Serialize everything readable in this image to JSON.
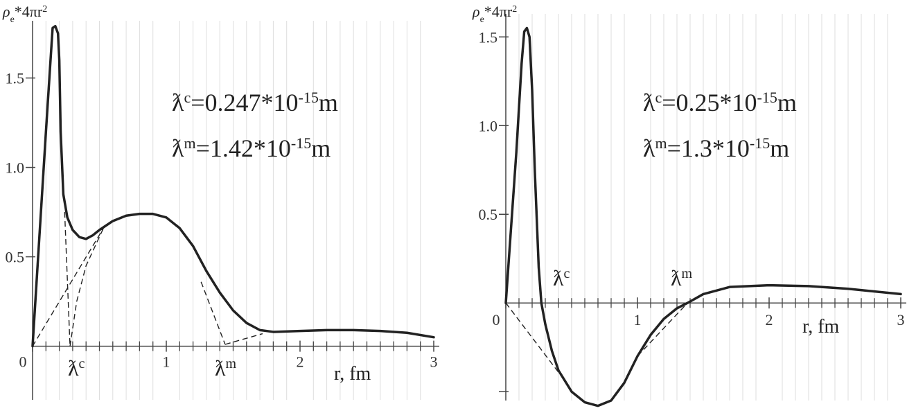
{
  "chart_data": [
    {
      "type": "line",
      "ylabel": [
        {
          "text": "ρ",
          "style": "italic"
        },
        {
          "text": "e",
          "style": "sub"
        },
        {
          "text": "*4πr"
        },
        {
          "text": "2",
          "style": "sup"
        }
      ],
      "xlabel": "r, fm",
      "xlim": [
        0,
        3
      ],
      "ylim": [
        -0.3,
        1.82
      ],
      "xticks": [
        0,
        1,
        2,
        3
      ],
      "yticks": [
        0.5,
        {
          "value": 1,
          "label": "1.0"
        },
        1.5
      ],
      "xminor": [
        0.1,
        0.2,
        0.3,
        0.4,
        0.5,
        0.6,
        0.7,
        0.8,
        0.9,
        1.1,
        1.2,
        1.3,
        1.4,
        1.5,
        1.6,
        1.7,
        1.8,
        1.9,
        2.1,
        2.2,
        2.3,
        2.4,
        2.5,
        2.6,
        2.7,
        2.8,
        2.9
      ],
      "grid": true,
      "series": [
        {
          "color": "#222",
          "x": [
            0,
            0.1,
            0.13,
            0.15,
            0.17,
            0.19,
            0.2,
            0.21,
            0.23,
            0.26,
            0.3,
            0.35,
            0.4,
            0.45,
            0.5,
            0.6,
            0.7,
            0.8,
            0.9,
            1.0,
            1.1,
            1.2,
            1.3,
            1.4,
            1.5,
            1.6,
            1.7,
            1.8,
            2.0,
            2.2,
            2.4,
            2.6,
            2.8,
            3.0
          ],
          "values": [
            0,
            1.2,
            1.55,
            1.78,
            1.79,
            1.75,
            1.6,
            1.2,
            0.85,
            0.72,
            0.65,
            0.61,
            0.6,
            0.62,
            0.65,
            0.7,
            0.73,
            0.74,
            0.74,
            0.72,
            0.66,
            0.56,
            0.42,
            0.3,
            0.2,
            0.13,
            0.09,
            0.08,
            0.085,
            0.09,
            0.09,
            0.085,
            0.075,
            0.05
          ]
        }
      ],
      "guides": [
        {
          "x": [
            0,
            0.53
          ],
          "values": [
            0,
            0.66
          ]
        },
        {
          "x": [
            0.24,
            0.28
          ],
          "values": [
            0.75,
            0
          ]
        },
        {
          "x": [
            0.28,
            0.33,
            0.4,
            0.53
          ],
          "values": [
            0,
            0.25,
            0.45,
            0.66
          ]
        },
        {
          "x": [
            1.26,
            1.44
          ],
          "values": [
            0.36,
            0.01
          ]
        },
        {
          "x": [
            1.44,
            1.72
          ],
          "values": [
            0.01,
            0.07
          ]
        }
      ],
      "annotations": [
        [
          {
            "text": "ƛ"
          },
          {
            "text": "c",
            "style": "sup"
          },
          {
            "text": "=0.247*10"
          },
          {
            "text": "-15",
            "style": "sup"
          },
          {
            "text": "m"
          }
        ],
        [
          {
            "text": "ƛ"
          },
          {
            "text": "m",
            "style": "sup"
          },
          {
            "text": "=1.42*10"
          },
          {
            "text": "-15",
            "style": "sup"
          },
          {
            "text": "m"
          }
        ],
        [
          {
            "text": "ƛ"
          },
          {
            "text": "c",
            "style": "sup"
          }
        ],
        [
          {
            "text": "ƛ"
          },
          {
            "text": "m",
            "style": "sup"
          }
        ]
      ]
    },
    {
      "type": "line",
      "ylabel": [
        {
          "text": "ρ",
          "style": "italic"
        },
        {
          "text": "e",
          "style": "sub"
        },
        {
          "text": "*4πr"
        },
        {
          "text": "2",
          "style": "sup"
        }
      ],
      "xlabel": "r, fm",
      "xlim": [
        0,
        3
      ],
      "ylim": [
        -0.55,
        1.63
      ],
      "xticks": [
        0,
        1,
        2,
        3
      ],
      "yticks": [
        {
          "value": -0.5,
          "label": null
        },
        0.5,
        {
          "value": 1,
          "label": "1.0"
        },
        1.5
      ],
      "xminor": [
        0.1,
        0.2,
        0.3,
        0.4,
        0.5,
        0.6,
        0.7,
        0.8,
        0.9,
        1.1,
        1.2,
        1.3,
        1.4,
        1.5,
        1.6,
        1.7,
        1.8,
        1.9,
        2.1,
        2.2,
        2.3,
        2.4,
        2.5,
        2.6,
        2.7,
        2.8,
        2.9
      ],
      "grid": true,
      "series": [
        {
          "color": "#222",
          "x": [
            0,
            0.08,
            0.12,
            0.14,
            0.16,
            0.18,
            0.2,
            0.22,
            0.25,
            0.27,
            0.3,
            0.35,
            0.4,
            0.5,
            0.6,
            0.7,
            0.8,
            0.9,
            1.0,
            1.1,
            1.2,
            1.3,
            1.38,
            1.5,
            1.7,
            2.0,
            2.3,
            2.6,
            3.0
          ],
          "values": [
            0,
            0.85,
            1.35,
            1.53,
            1.55,
            1.5,
            1.2,
            0.75,
            0.2,
            0,
            -0.12,
            -0.27,
            -0.38,
            -0.5,
            -0.56,
            -0.58,
            -0.55,
            -0.45,
            -0.3,
            -0.18,
            -0.09,
            -0.03,
            0,
            0.05,
            0.09,
            0.1,
            0.095,
            0.08,
            0.05
          ]
        }
      ],
      "guides": [
        {
          "x": [
            0,
            0.43
          ],
          "values": [
            0,
            -0.42
          ]
        },
        {
          "x": [
            1.0,
            1.38
          ],
          "values": [
            -0.3,
            0
          ]
        }
      ],
      "annotations": [
        [
          {
            "text": "ƛ"
          },
          {
            "text": "c",
            "style": "sup"
          },
          {
            "text": "=0.25*10"
          },
          {
            "text": "-15",
            "style": "sup"
          },
          {
            "text": "m"
          }
        ],
        [
          {
            "text": "ƛ"
          },
          {
            "text": "m",
            "style": "sup"
          },
          {
            "text": "=1.3*10"
          },
          {
            "text": "-15",
            "style": "sup"
          },
          {
            "text": "m"
          }
        ],
        [
          {
            "text": "ƛ"
          },
          {
            "text": "c",
            "style": "sup"
          }
        ],
        [
          {
            "text": "ƛ"
          },
          {
            "text": "m",
            "style": "sup"
          }
        ]
      ]
    }
  ]
}
